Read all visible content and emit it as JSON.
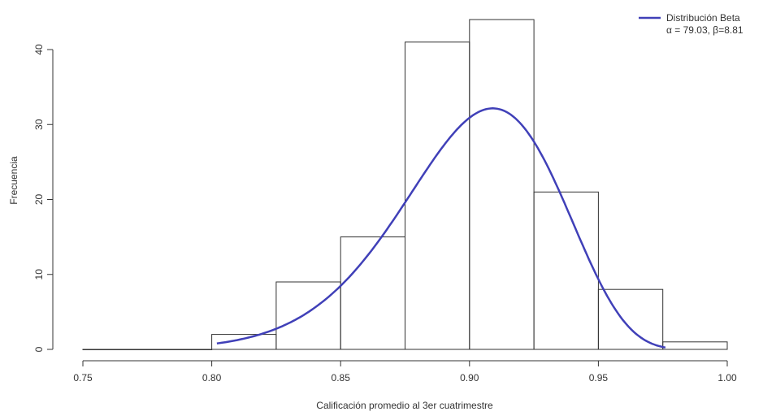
{
  "chart_data": {
    "type": "bar",
    "title": "",
    "xlabel": "Calificación promedio al 3er cuatrimestre",
    "ylabel": "Frecuencia",
    "xlim": [
      0.75,
      1.0
    ],
    "ylim": [
      0,
      45
    ],
    "x_ticks": [
      0.75,
      0.8,
      0.85,
      0.9,
      0.95,
      1.0
    ],
    "x_tick_labels": [
      "0.75",
      "0.80",
      "0.85",
      "0.90",
      "0.95",
      "1.00"
    ],
    "y_ticks": [
      0,
      10,
      20,
      30,
      40
    ],
    "y_tick_labels": [
      "0",
      "10",
      "20",
      "30",
      "40"
    ],
    "bins": [
      {
        "start": 0.75,
        "end": 0.775,
        "count": 0
      },
      {
        "start": 0.775,
        "end": 0.8,
        "count": 0
      },
      {
        "start": 0.8,
        "end": 0.825,
        "count": 2
      },
      {
        "start": 0.825,
        "end": 0.85,
        "count": 9
      },
      {
        "start": 0.85,
        "end": 0.875,
        "count": 15
      },
      {
        "start": 0.875,
        "end": 0.9,
        "count": 41
      },
      {
        "start": 0.9,
        "end": 0.925,
        "count": 44
      },
      {
        "start": 0.925,
        "end": 0.95,
        "count": 21
      },
      {
        "start": 0.95,
        "end": 0.975,
        "count": 8
      },
      {
        "start": 0.975,
        "end": 1.0,
        "count": 1
      }
    ],
    "curve": {
      "name": "Distribución Beta",
      "alpha": 79.03,
      "beta": 8.81,
      "color": "#4040b8",
      "x_range": [
        0.802,
        0.976
      ],
      "scale": 2.5
    },
    "legend": {
      "position": "top-right",
      "line1": "Distribución Beta",
      "line2": "α = 79.03, β=8.81"
    },
    "grid": false
  }
}
